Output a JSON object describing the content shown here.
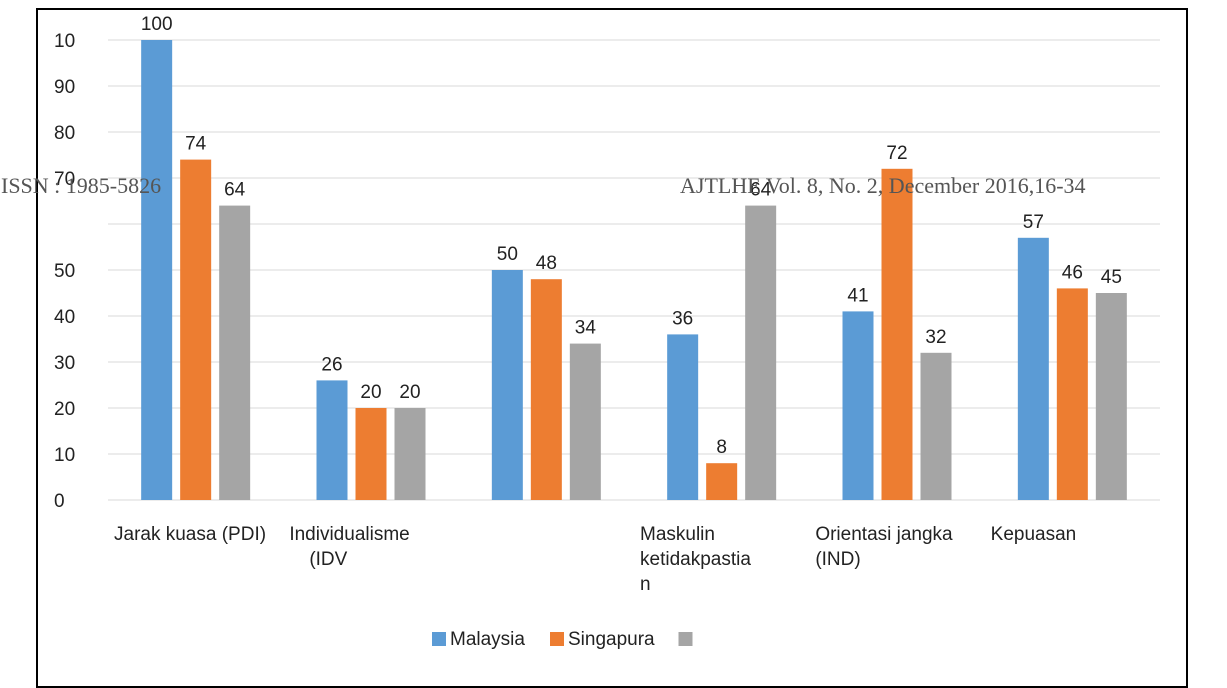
{
  "chart_data": {
    "type": "bar",
    "categories": [
      [
        "Jarak kuasa (PDI)"
      ],
      [
        "Individualisme",
        "(IDV"
      ],
      [
        ""
      ],
      [
        "Maskulin",
        "ketidakpastia",
        "n"
      ],
      [
        "Orientasi jangka",
        "(IND)"
      ],
      [
        "Kepuasan"
      ]
    ],
    "series": [
      {
        "name": "Malaysia",
        "color": "#5b9bd5",
        "values": [
          100,
          26,
          50,
          36,
          41,
          57
        ]
      },
      {
        "name": "Singapura",
        "color": "#ed7d31",
        "values": [
          74,
          20,
          48,
          8,
          72,
          46
        ]
      },
      {
        "name": "",
        "color": "#a5a5a5",
        "values": [
          64,
          20,
          34,
          64,
          32,
          45
        ]
      }
    ],
    "data_labels": [
      [
        "100",
        "74",
        "64"
      ],
      [
        "26",
        "20",
        "20"
      ],
      [
        "50",
        "48",
        "34"
      ],
      [
        "36",
        "8",
        "64"
      ],
      [
        "41",
        "72",
        "32"
      ],
      [
        "57",
        "46",
        "45"
      ]
    ],
    "y_tick_labels": [
      "0",
      "10",
      "20",
      "30",
      "40",
      "50",
      "",
      "70",
      "80",
      "90",
      "10"
    ],
    "ylim": [
      0,
      100
    ],
    "grid": true,
    "legend_position": "bottom",
    "title": "",
    "xlabel": "",
    "ylabel": ""
  },
  "overlay": {
    "left_text": "ISSN : 1985-5826",
    "right_text": "AJTLHE Vol. 8, No. 2, December 2016,16-34"
  }
}
